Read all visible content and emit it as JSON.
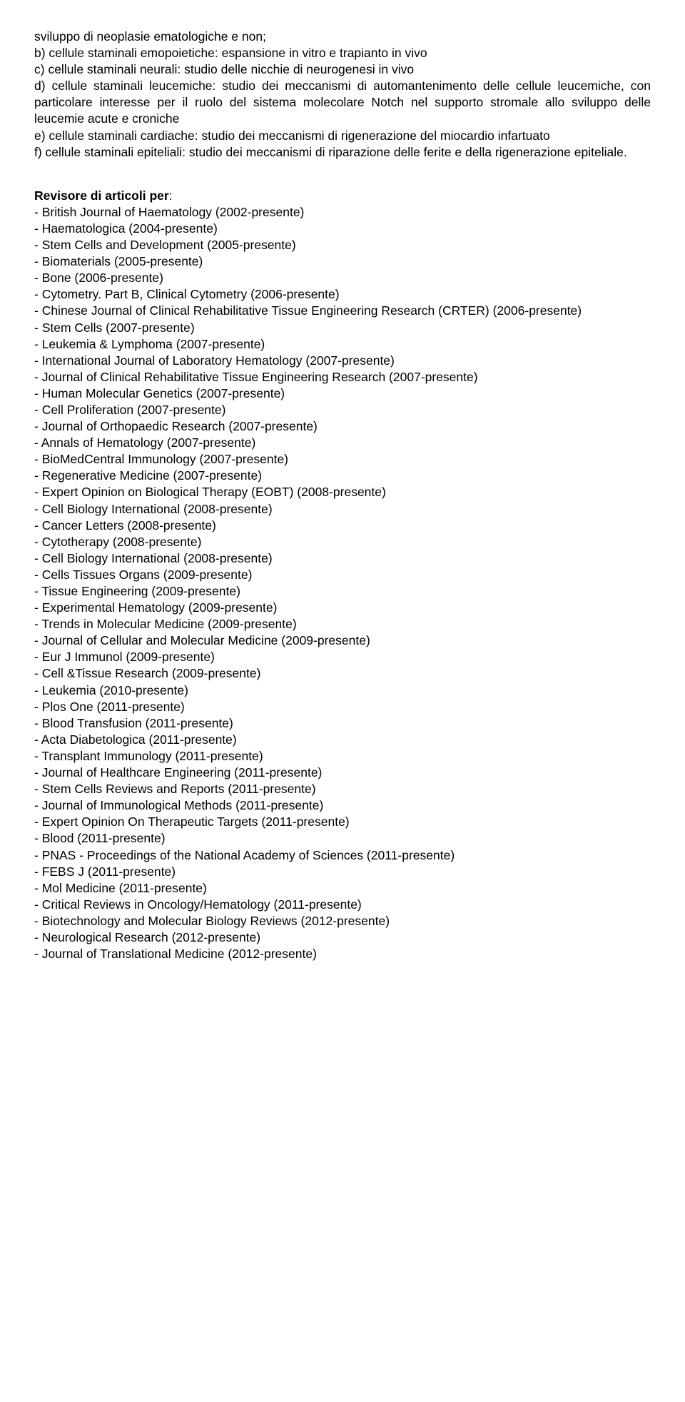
{
  "intro": {
    "line_a": "sviluppo di neoplasie ematologiche e non;",
    "line_b": "b) cellule staminali emopoietiche: espansione in vitro e trapianto in vivo",
    "line_c": "c) cellule staminali neurali: studio delle nicchie di neurogenesi in vivo",
    "line_d": "d) cellule staminali leucemiche: studio dei meccanismi di automantenimento delle cellule leucemiche, con particolare interesse per il ruolo del sistema molecolare Notch nel supporto stromale allo sviluppo delle leucemie acute e croniche",
    "line_e": "e) cellule staminali cardiache: studio dei meccanismi di rigenerazione del miocardio infartuato",
    "line_f": "f) cellule staminali epiteliali: studio dei meccanismi di riparazione delle ferite e della rigenerazione epiteliale."
  },
  "section": {
    "heading": "Revisore di articoli per",
    "colon": ":",
    "items": [
      "- British Journal of Haematology (2002-presente)",
      "- Haematologica (2004-presente)",
      "- Stem Cells and Development (2005-presente)",
      "- Biomaterials (2005-presente)",
      "- Bone (2006-presente)",
      "- Cytometry. Part B, Clinical Cytometry (2006-presente)",
      "- Chinese Journal of Clinical Rehabilitative Tissue Engineering Research (CRTER) (2006-presente)",
      "- Stem Cells (2007-presente)",
      "- Leukemia & Lymphoma (2007-presente)",
      "- International Journal of Laboratory Hematology (2007-presente)",
      "- Journal of Clinical Rehabilitative Tissue Engineering Research (2007-presente)",
      "- Human Molecular Genetics (2007-presente)",
      "- Cell Proliferation (2007-presente)",
      "- Journal of Orthopaedic Research (2007-presente)",
      "- Annals of Hematology (2007-presente)",
      "- BioMedCentral Immunology (2007-presente)",
      "- Regenerative Medicine (2007-presente)",
      "-  Expert Opinion on Biological Therapy (EOBT) (2008-presente)",
      "- Cell Biology International (2008-presente)",
      "- Cancer Letters (2008-presente)",
      "- Cytotherapy (2008-presente)",
      "- Cell Biology International (2008-presente)",
      "- Cells Tissues Organs (2009-presente)",
      "- Tissue Engineering (2009-presente)",
      "- Experimental Hematology (2009-presente)",
      "- Trends in Molecular Medicine (2009-presente)",
      "- Journal of Cellular and Molecular Medicine (2009-presente)",
      "- Eur J Immunol (2009-presente)",
      "- Cell &Tissue Research (2009-presente)",
      "- Leukemia (2010-presente)",
      "- Plos One (2011-presente)",
      "- Blood Transfusion (2011-presente)",
      "- Acta Diabetologica (2011-presente)",
      "- Transplant Immunology (2011-presente)",
      "- Journal of Healthcare Engineering (2011-presente)",
      "- Stem Cells Reviews and Reports (2011-presente)",
      "- Journal of Immunological Methods (2011-presente)",
      "- Expert Opinion On Therapeutic Targets (2011-presente)",
      "- Blood (2011-presente)",
      "- PNAS - Proceedings of the National Academy of Sciences (2011-presente)",
      "- FEBS J (2011-presente)",
      "- Mol Medicine (2011-presente)",
      "- Critical Reviews in Oncology/Hematology (2011-presente)",
      "- Biotechnology and Molecular Biology Reviews (2012-presente)",
      "- Neurological Research (2012-presente)",
      "- Journal of Translational Medicine (2012-presente)"
    ]
  }
}
